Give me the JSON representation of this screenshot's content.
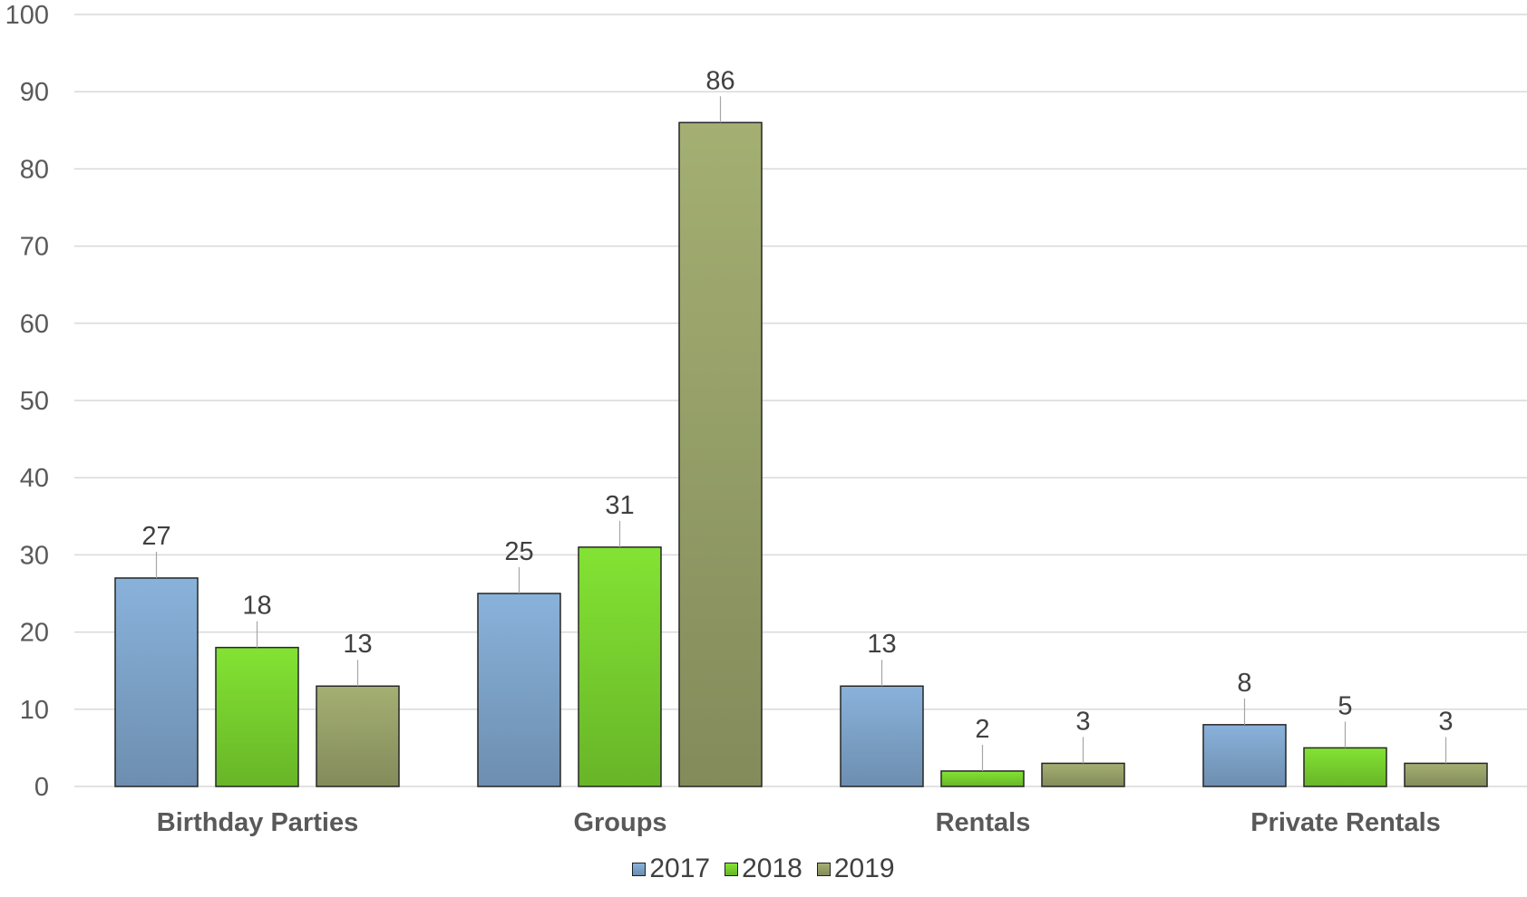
{
  "chart_data": {
    "type": "bar",
    "categories": [
      "Birthday Parties",
      "Groups",
      "Rentals",
      "Private Rentals"
    ],
    "series": [
      {
        "name": "2017",
        "values": [
          27,
          25,
          13,
          8
        ],
        "color": "#7fa5cb"
      },
      {
        "name": "2018",
        "values": [
          18,
          31,
          2,
          5
        ],
        "color": "#79d22f"
      },
      {
        "name": "2019",
        "values": [
          13,
          86,
          3,
          3
        ],
        "color": "#98a26a"
      }
    ],
    "ylim": [
      0,
      100
    ],
    "yticks": [
      0,
      10,
      20,
      30,
      40,
      50,
      60,
      70,
      80,
      90,
      100
    ],
    "grid": true,
    "data_labels": true,
    "legend_position": "bottom",
    "title": "",
    "xlabel": "",
    "ylabel": ""
  }
}
